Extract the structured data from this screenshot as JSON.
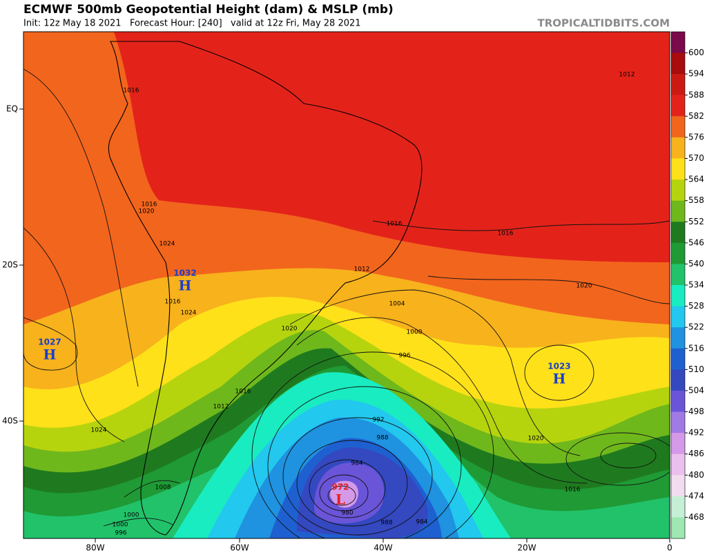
{
  "header": {
    "title": "ECMWF 500mb Geopotential Height (dam) & MSLP (mb)",
    "subtitle": "Init: 12z May 18 2021   Forecast Hour: [240]   valid at 12z Fri, May 28 2021",
    "site": "TROPICALTIDBITS.COM"
  },
  "colorbar": {
    "levels": [
      600,
      594,
      588,
      582,
      576,
      570,
      564,
      558,
      552,
      546,
      540,
      534,
      528,
      522,
      516,
      510,
      504,
      498,
      492,
      486,
      480,
      474,
      468
    ],
    "colors": [
      "#7a0a4a",
      "#a80c0c",
      "#cc1a12",
      "#e3231a",
      "#f2651d",
      "#f7b21c",
      "#ffe11a",
      "#b6d40e",
      "#6fb81c",
      "#1f7a1f",
      "#1f9a35",
      "#22c26a",
      "#19ecc0",
      "#22c8ee",
      "#1f92e0",
      "#1f60d0",
      "#3448c0",
      "#6a55d8",
      "#a07ae4",
      "#d49ae8",
      "#ecc0ee",
      "#f2dcf0",
      "#c6f0d6",
      "#9ee8b2"
    ]
  },
  "axes": {
    "lat_labels": [
      "EQ",
      "20S",
      "40S"
    ],
    "lon_labels": [
      "80W",
      "60W",
      "40W",
      "20W",
      "0"
    ]
  },
  "centers": [
    {
      "pressure": 1027,
      "symbol": "H"
    },
    {
      "pressure": 1032,
      "symbol": "H"
    },
    {
      "pressure": 1023,
      "symbol": "H"
    },
    {
      "pressure": 972,
      "symbol": "L"
    }
  ],
  "isobar_labels": [
    1016,
    1016,
    1020,
    1024,
    1016,
    1024,
    1020,
    1016,
    1012,
    1024,
    1016,
    1016,
    1012,
    1004,
    1000,
    996,
    992,
    988,
    984,
    980,
    988,
    984,
    1020,
    1020,
    1016,
    1008,
    1000,
    1000,
    996,
    1012
  ]
}
